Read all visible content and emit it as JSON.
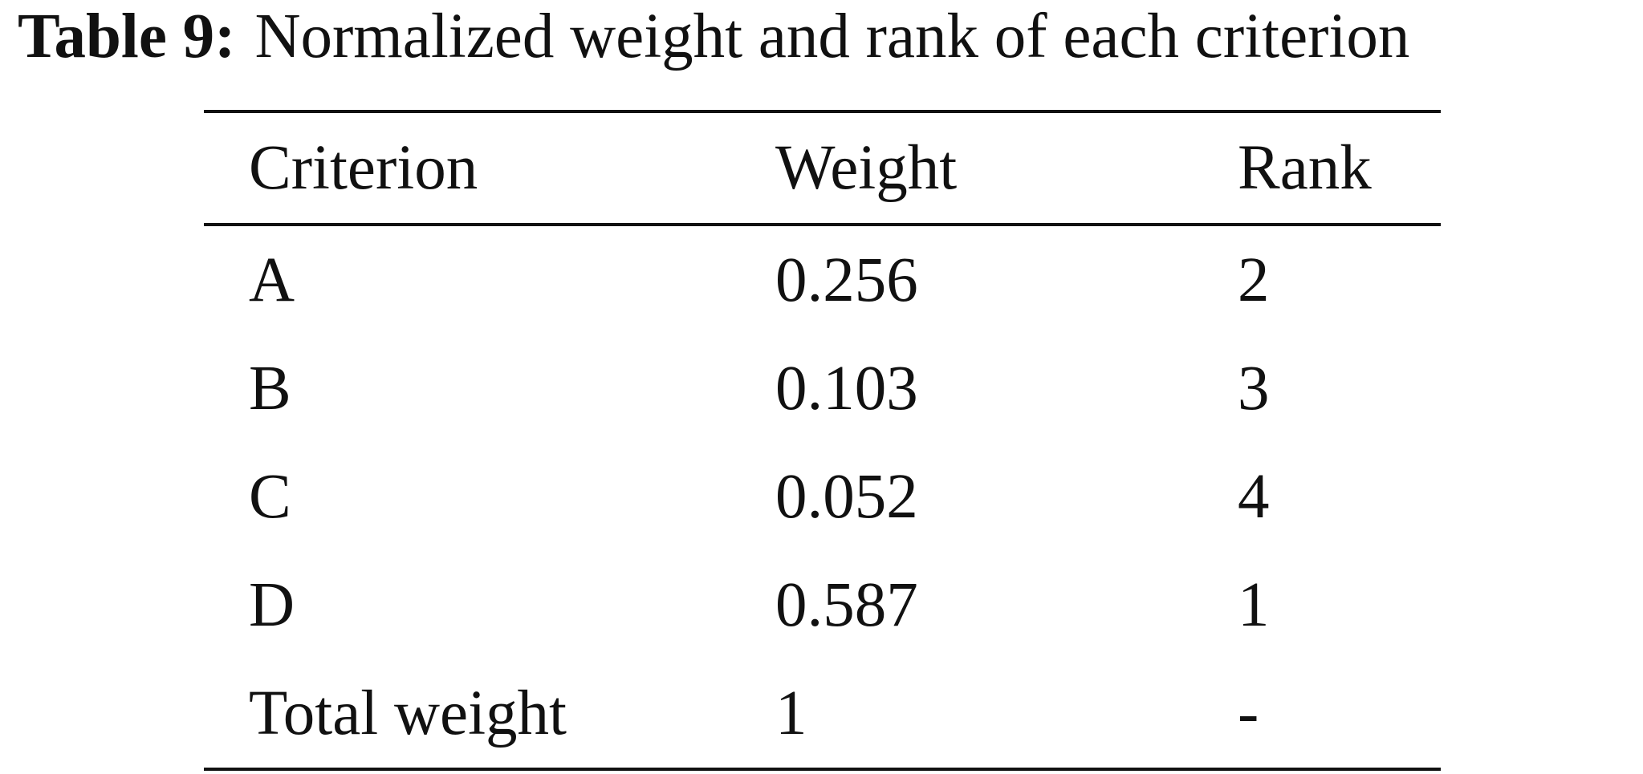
{
  "caption": {
    "label": "Table 9:",
    "text": "Normalized weight and rank of each criterion"
  },
  "table": {
    "headers": [
      "Criterion",
      "Weight",
      "Rank"
    ],
    "rows": [
      [
        "A",
        "0.256",
        "2"
      ],
      [
        "B",
        "0.103",
        "3"
      ],
      [
        "C",
        "0.052",
        "4"
      ],
      [
        "D",
        "0.587",
        "1"
      ],
      [
        "Total weight",
        "1",
        "-"
      ]
    ]
  }
}
